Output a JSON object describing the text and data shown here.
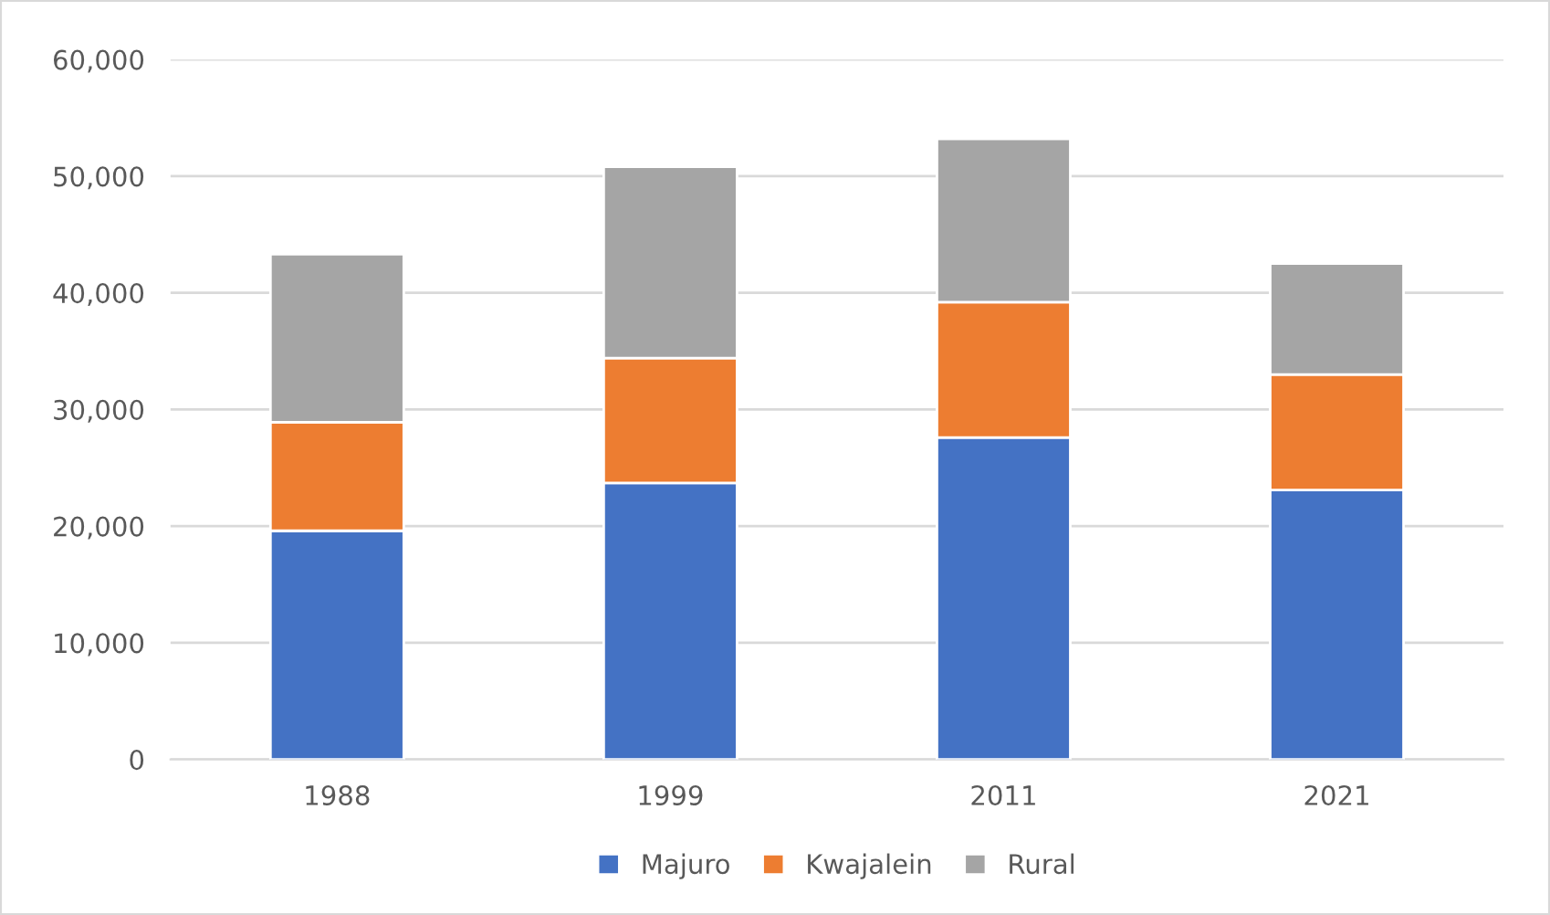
{
  "chart_data": {
    "type": "bar",
    "stacked": true,
    "categories": [
      "1988",
      "1999",
      "2011",
      "2021"
    ],
    "series": [
      {
        "name": "Majuro",
        "color": "#4472c4",
        "values": [
          19600,
          23700,
          27600,
          23100
        ]
      },
      {
        "name": "Kwajalein",
        "color": "#ed7d31",
        "values": [
          9300,
          10700,
          11600,
          9900
        ]
      },
      {
        "name": "Rural",
        "color": "#a5a5a5",
        "values": [
          14400,
          16400,
          14000,
          9500
        ]
      }
    ],
    "ylim": [
      0,
      60000
    ],
    "yticks": [
      {
        "value": 0,
        "label": "0"
      },
      {
        "value": 10000,
        "label": "10,000"
      },
      {
        "value": 20000,
        "label": "20,000"
      },
      {
        "value": 30000,
        "label": "30,000"
      },
      {
        "value": 40000,
        "label": "40,000"
      },
      {
        "value": 50000,
        "label": "50,000"
      },
      {
        "value": 60000,
        "label": "60,000"
      }
    ],
    "grid": "y",
    "legend": "bottom"
  }
}
